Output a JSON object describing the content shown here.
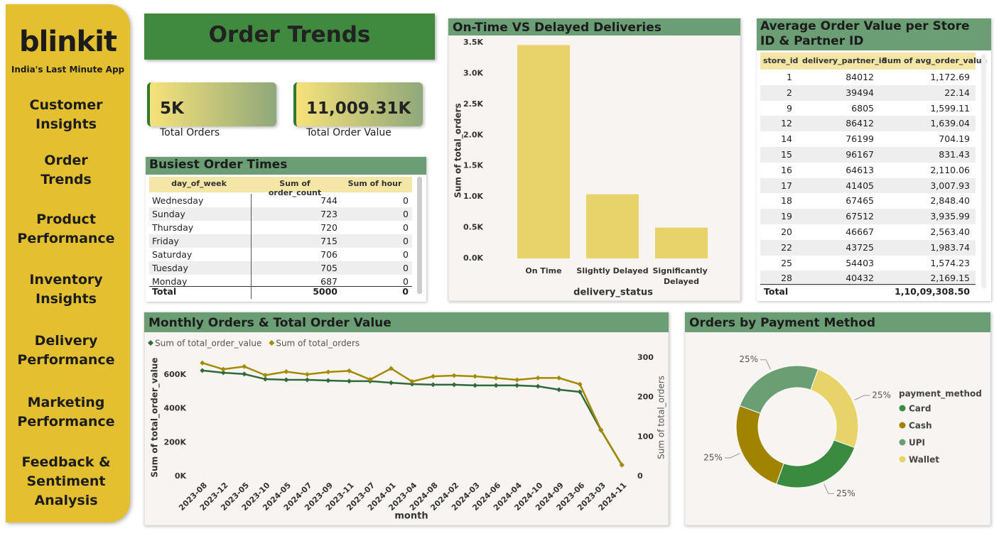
{
  "sidebar": {
    "brand": "blinkit",
    "tagline": "India's Last Minute App",
    "nav": [
      [
        "Customer",
        "Insights"
      ],
      [
        "Order",
        "Trends"
      ],
      [
        "Product",
        "Performance"
      ],
      [
        "Inventory",
        "Insights"
      ],
      [
        "Delivery",
        "Performance"
      ],
      [
        "Marketing",
        "Performance"
      ],
      [
        "Feedback &",
        "Sentiment",
        "Analysis"
      ]
    ]
  },
  "page_title": "Order Trends",
  "kpis": [
    {
      "value": "5K",
      "label": "Total Orders"
    },
    {
      "value": "11,009.31K",
      "label": "Total Order Value"
    }
  ],
  "busiest_table": {
    "title": "Busiest Order Times",
    "columns": [
      "day_of_week",
      "Sum of order_count",
      "Sum of hour"
    ],
    "rows": [
      [
        "Wednesday",
        744,
        0
      ],
      [
        "Sunday",
        723,
        0
      ],
      [
        "Thursday",
        720,
        0
      ],
      [
        "Friday",
        715,
        0
      ],
      [
        "Saturday",
        706,
        0
      ],
      [
        "Tuesday",
        705,
        0
      ],
      [
        "Monday",
        687,
        0
      ]
    ],
    "total": [
      "Total",
      5000,
      0
    ]
  },
  "store_table": {
    "title": "Average Order Value per Store ID & Partner ID",
    "columns": [
      "store_id",
      "delivery_partner_id",
      "Sum of avg_order_value"
    ],
    "rows": [
      [
        1,
        84012,
        "1,172.69"
      ],
      [
        2,
        39494,
        "22.14"
      ],
      [
        9,
        6805,
        "1,599.11"
      ],
      [
        12,
        86412,
        "1,639.04"
      ],
      [
        14,
        76199,
        "704.19"
      ],
      [
        15,
        96167,
        "831.43"
      ],
      [
        16,
        64613,
        "2,110.06"
      ],
      [
        17,
        41405,
        "3,007.93"
      ],
      [
        18,
        67465,
        "2,848.40"
      ],
      [
        19,
        67512,
        "3,935.99"
      ],
      [
        20,
        46667,
        "2,563.40"
      ],
      [
        22,
        43725,
        "1,983.74"
      ],
      [
        25,
        54403,
        "1,574.23"
      ],
      [
        28,
        40432,
        "2,169.15"
      ]
    ],
    "total": [
      "Total",
      "1,10,09,308.50"
    ]
  },
  "chart_data": [
    {
      "type": "bar",
      "title": "On-Time VS Delayed Deliveries",
      "xlabel": "delivery_status",
      "ylabel": "Sum of total_orders",
      "categories": [
        "On Time",
        "Slightly Delayed",
        "Significantly Delayed"
      ],
      "values": [
        3460,
        1040,
        500
      ],
      "color": "#e8d36a",
      "ylim": [
        0,
        3500
      ],
      "yticks": [
        {
          "value": 0,
          "label": "0.0K"
        },
        {
          "value": 500,
          "label": "0.5K"
        },
        {
          "value": 1000,
          "label": "1.0K"
        },
        {
          "value": 1500,
          "label": "1.5K"
        },
        {
          "value": 2000,
          "label": "2.0K"
        },
        {
          "value": 2500,
          "label": "2.5K"
        },
        {
          "value": 3000,
          "label": "3.0K"
        },
        {
          "value": 3500,
          "label": "3.5K"
        }
      ]
    },
    {
      "type": "line",
      "title": "Monthly Orders & Total Order Value",
      "xlabel": "month",
      "ylabel": "Sum of total_order_value",
      "y2label": "Sum of total_orders",
      "categories": [
        "2023-08",
        "2023-12",
        "2023-05",
        "2023-10",
        "2024-05",
        "2024-07",
        "2023-09",
        "2023-11",
        "2023-07",
        "2024-01",
        "2023-04",
        "2024-08",
        "2024-02",
        "2024-03",
        "2024-06",
        "2024-04",
        "2024-10",
        "2024-09",
        "2023-06",
        "2023-03",
        "2024-11"
      ],
      "series": [
        {
          "name": "Sum of total_order_value",
          "color": "#2f6b3a",
          "values": [
            625000,
            612000,
            604000,
            574000,
            570000,
            570000,
            566000,
            562000,
            562000,
            553000,
            545000,
            541000,
            541000,
            537000,
            537000,
            537000,
            532000,
            512000,
            499000,
            273000,
            67000
          ]
        },
        {
          "name": "Sum of total_orders",
          "color": "#a38a00",
          "axis": "y2",
          "values": [
            287,
            271,
            278,
            256,
            265,
            258,
            264,
            267,
            245,
            273,
            240,
            253,
            255,
            253,
            249,
            244,
            249,
            249,
            233,
            118,
            29
          ]
        }
      ],
      "ylim": [
        0,
        700000
      ],
      "yticks": [
        {
          "value": 0,
          "label": "0K"
        },
        {
          "value": 200000,
          "label": "200K"
        },
        {
          "value": 400000,
          "label": "400K"
        },
        {
          "value": 600000,
          "label": "600K"
        }
      ],
      "y2lim": [
        0,
        300
      ],
      "y2ticks": [
        0,
        100,
        200,
        300
      ],
      "legend": "top-left"
    },
    {
      "type": "pie",
      "title": "Orders by Payment Method",
      "legend_title": "payment_method",
      "donut": true,
      "categories": [
        "Card",
        "Cash",
        "UPI",
        "Wallet"
      ],
      "values": [
        25,
        25,
        25,
        25
      ],
      "value_labels": [
        "25%",
        "25%",
        "25%",
        "25%"
      ],
      "colors": [
        "#3a8a3f",
        "#a08400",
        "#6a9e73",
        "#e8d36a"
      ],
      "legend": "right"
    }
  ]
}
